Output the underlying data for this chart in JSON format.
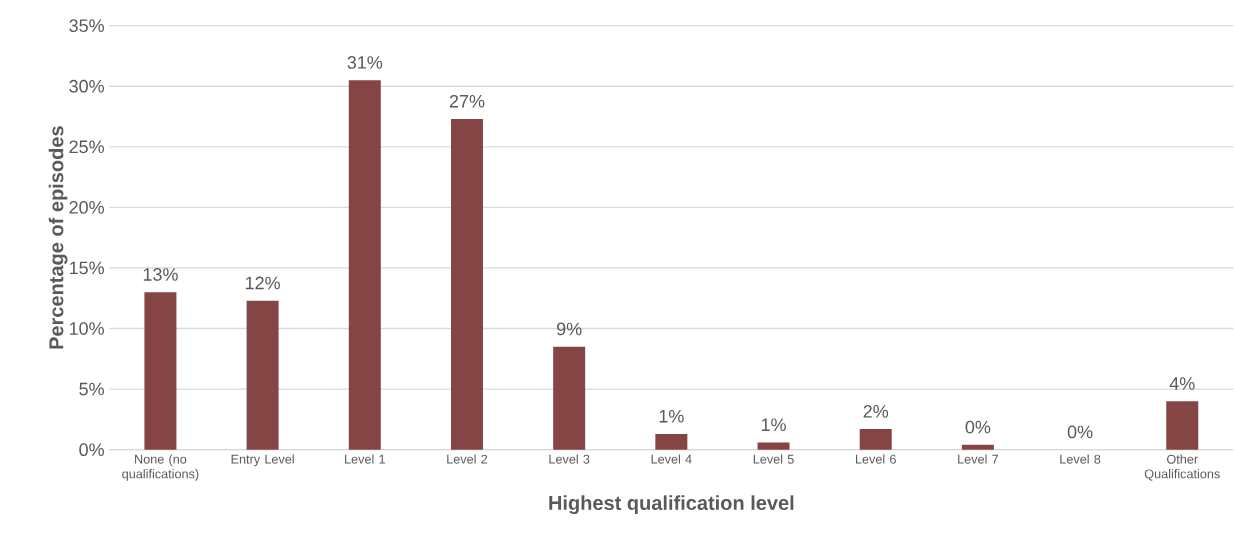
{
  "chart_data": {
    "type": "bar",
    "xlabel": "Highest qualification level",
    "ylabel": "Percentage of episodes",
    "categories": [
      "None (no qualifications)",
      "Entry Level",
      "Level 1",
      "Level 2",
      "Level 3",
      "Level 4",
      "Level 5",
      "Level 6",
      "Level 7",
      "Level 8",
      "Other Qualifications"
    ],
    "values": [
      13.0,
      12.3,
      30.5,
      27.3,
      8.5,
      1.3,
      0.6,
      1.7,
      0.4,
      0,
      4.0
    ],
    "value_labels": [
      "13%",
      "12%",
      "31%",
      "27%",
      "9%",
      "1%",
      "1%",
      "2%",
      "0%",
      "0%",
      "4%"
    ],
    "color": "#864545",
    "ylim": [
      0,
      35
    ],
    "yticks": [
      {
        "value": 0,
        "label": "0%"
      },
      {
        "value": 5,
        "label": "5%"
      },
      {
        "value": 10,
        "label": "10%"
      },
      {
        "value": 15,
        "label": "15%"
      },
      {
        "value": 20,
        "label": "20%"
      },
      {
        "value": 25,
        "label": "25%"
      },
      {
        "value": 30,
        "label": "30%"
      },
      {
        "value": 35,
        "label": "35%"
      }
    ],
    "grid": "y"
  }
}
